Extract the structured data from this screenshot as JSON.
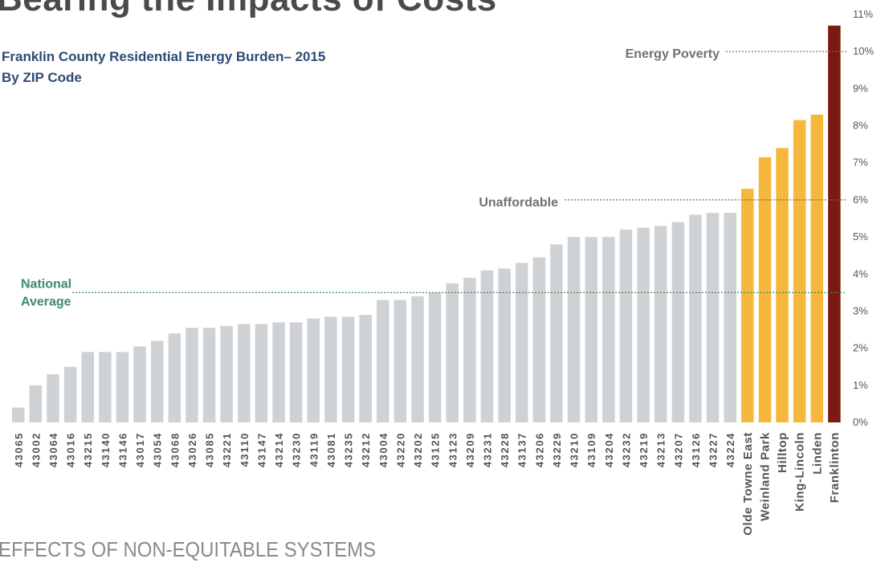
{
  "header": {
    "title": "Bearing the Impacts of Costs"
  },
  "footer": {
    "text": "EFFECTS OF NON-EQUITABLE SYSTEMS"
  },
  "colors": {
    "zip_bar": "#cfd2d4",
    "unaffordable_bar": "#f5b83c",
    "poverty_bar": "#7a1a10",
    "national_line": "#3d8a6a",
    "threshold_line": "#6b6b6b"
  },
  "chart_data": {
    "type": "bar",
    "title": "Franklin County Residential Energy Burden– 2015",
    "title_line1": "Franklin County Residential Energy Burden– 2015",
    "title_line2": "By ZIP Code",
    "categories": [
      "43065",
      "43002",
      "43064",
      "43016",
      "43215",
      "43140",
      "43146",
      "43017",
      "43054",
      "43068",
      "43026",
      "43085",
      "43221",
      "43110",
      "43147",
      "43214",
      "43230",
      "43119",
      "43081",
      "43235",
      "43212",
      "43004",
      "43220",
      "43202",
      "43125",
      "43123",
      "43209",
      "43231",
      "43228",
      "43137",
      "43206",
      "43229",
      "43210",
      "43109",
      "43204",
      "43232",
      "43219",
      "43213",
      "43207",
      "43126",
      "43227",
      "43224",
      "Olde Towne East",
      "Weinland Park",
      "Hilltop",
      "King-Lincoln",
      "Linden",
      "Franklinton"
    ],
    "values": [
      0.4,
      1.0,
      1.3,
      1.5,
      1.9,
      1.9,
      1.9,
      2.05,
      2.2,
      2.4,
      2.55,
      2.55,
      2.6,
      2.65,
      2.65,
      2.7,
      2.7,
      2.8,
      2.85,
      2.85,
      2.9,
      3.3,
      3.3,
      3.4,
      3.5,
      3.75,
      3.9,
      4.1,
      4.15,
      4.3,
      4.45,
      4.8,
      5.0,
      5.0,
      5.0,
      5.2,
      5.25,
      5.3,
      5.4,
      5.6,
      5.65,
      5.65,
      6.3,
      7.15,
      7.4,
      8.15,
      8.3,
      10.7
    ],
    "ylim": [
      0,
      11
    ],
    "yticks": [
      "0%",
      "1%",
      "2%",
      "3%",
      "4%",
      "5%",
      "6%",
      "7%",
      "8%",
      "9%",
      "10%",
      "11%"
    ],
    "y_axis_side": "right",
    "reference_lines": [
      {
        "label_lines": [
          "National",
          "Average"
        ],
        "value": 3.5,
        "label_side": "left"
      },
      {
        "label_lines": [
          "Unaffordable"
        ],
        "value": 6.0,
        "label_side": "middle"
      },
      {
        "label_lines": [
          "Energy Poverty"
        ],
        "value": 10.0,
        "label_side": "middle"
      }
    ]
  }
}
